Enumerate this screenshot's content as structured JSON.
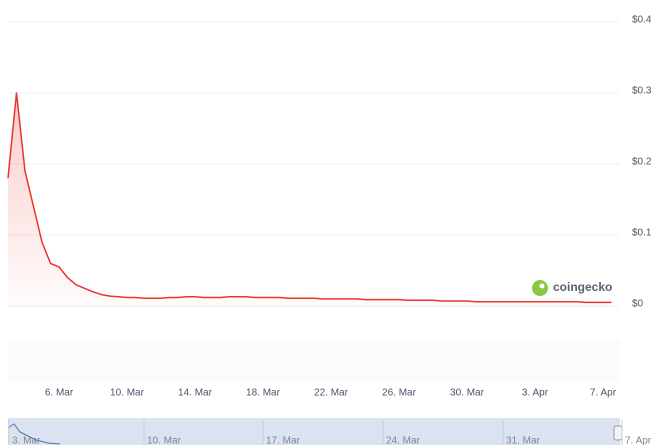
{
  "chart_data": {
    "type": "line",
    "categories": [
      null,
      null,
      null,
      null,
      null,
      null,
      "6. Mar",
      null,
      null,
      null,
      null,
      null,
      null,
      null,
      "10. Mar",
      null,
      null,
      null,
      null,
      null,
      null,
      null,
      "14. Mar",
      null,
      null,
      null,
      null,
      null,
      null,
      null,
      "18. Mar",
      null,
      null,
      null,
      null,
      null,
      null,
      null,
      "22. Mar",
      null,
      null,
      null,
      null,
      null,
      null,
      null,
      "26. Mar",
      null,
      null,
      null,
      null,
      null,
      null,
      null,
      "30. Mar",
      null,
      null,
      null,
      null,
      null,
      null,
      null,
      "3. Apr",
      null,
      null,
      null,
      null,
      null,
      null,
      null,
      "7. Apr",
      null
    ],
    "values": [
      0.18,
      0.3,
      0.19,
      0.14,
      0.09,
      0.06,
      0.055,
      0.04,
      0.03,
      0.025,
      0.02,
      0.016,
      0.014,
      0.013,
      0.012,
      0.012,
      0.011,
      0.011,
      0.011,
      0.012,
      0.012,
      0.013,
      0.013,
      0.012,
      0.012,
      0.012,
      0.013,
      0.013,
      0.013,
      0.012,
      0.012,
      0.012,
      0.012,
      0.011,
      0.011,
      0.011,
      0.011,
      0.01,
      0.01,
      0.01,
      0.01,
      0.01,
      0.009,
      0.009,
      0.009,
      0.009,
      0.009,
      0.008,
      0.008,
      0.008,
      0.008,
      0.007,
      0.007,
      0.007,
      0.007,
      0.006,
      0.006,
      0.006,
      0.006,
      0.006,
      0.006,
      0.006,
      0.006,
      0.006,
      0.006,
      0.006,
      0.006,
      0.006,
      0.005,
      0.005,
      0.005,
      0.005
    ],
    "color": "#e8352c",
    "ylim": [
      0,
      0.4
    ],
    "yticks": [
      {
        "value": 0,
        "label": "$0"
      },
      {
        "value": 0.1,
        "label": "$0.1"
      },
      {
        "value": 0.2,
        "label": "$0.2"
      },
      {
        "value": 0.3,
        "label": "$0.3"
      },
      {
        "value": 0.4,
        "label": "$0.4"
      }
    ],
    "grid": true,
    "watermark": "coingecko",
    "navigator_labels": [
      "3. Mar",
      "10. Mar",
      "17. Mar",
      "24. Mar",
      "31. Mar",
      "7. Apr"
    ]
  }
}
